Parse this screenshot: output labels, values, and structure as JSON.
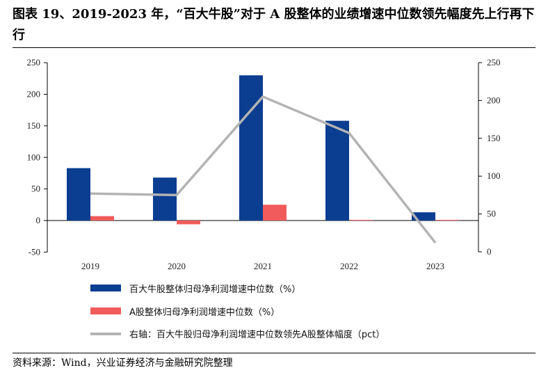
{
  "title": "图表 19、2019-2023 年，“百大牛股”对于 A 股整体的业绩增速中位数领先幅度先上行再下行",
  "source": "资料来源：Wind，兴业证券经济与金融研究院整理",
  "chart_data": {
    "type": "bar",
    "categories": [
      "2019",
      "2020",
      "2021",
      "2022",
      "2023"
    ],
    "series": [
      {
        "name": "百大牛股整体归母净利润增速中位数（%）",
        "type": "bar",
        "axis": "left",
        "color": "#0b3d91",
        "values": [
          83,
          68,
          230,
          158,
          13
        ]
      },
      {
        "name": "A股整体归母净利润增速中位数（%）",
        "type": "bar",
        "axis": "left",
        "color": "#f15b5b",
        "values": [
          7,
          -6,
          25,
          1,
          1
        ]
      },
      {
        "name": "右轴：百大牛股归母净利润增速中位数领先A股整体幅度（pct）",
        "type": "line",
        "axis": "right",
        "color": "#b3b3b3",
        "values": [
          77,
          75,
          205,
          157,
          12
        ]
      }
    ],
    "left_axis": {
      "min": -50,
      "max": 250,
      "ticks": [
        -50,
        0,
        50,
        100,
        150,
        200,
        250
      ]
    },
    "right_axis": {
      "min": 0,
      "max": 250,
      "ticks": [
        0,
        50,
        100,
        150,
        200,
        250
      ]
    },
    "legend_position": "bottom",
    "grid": false
  }
}
